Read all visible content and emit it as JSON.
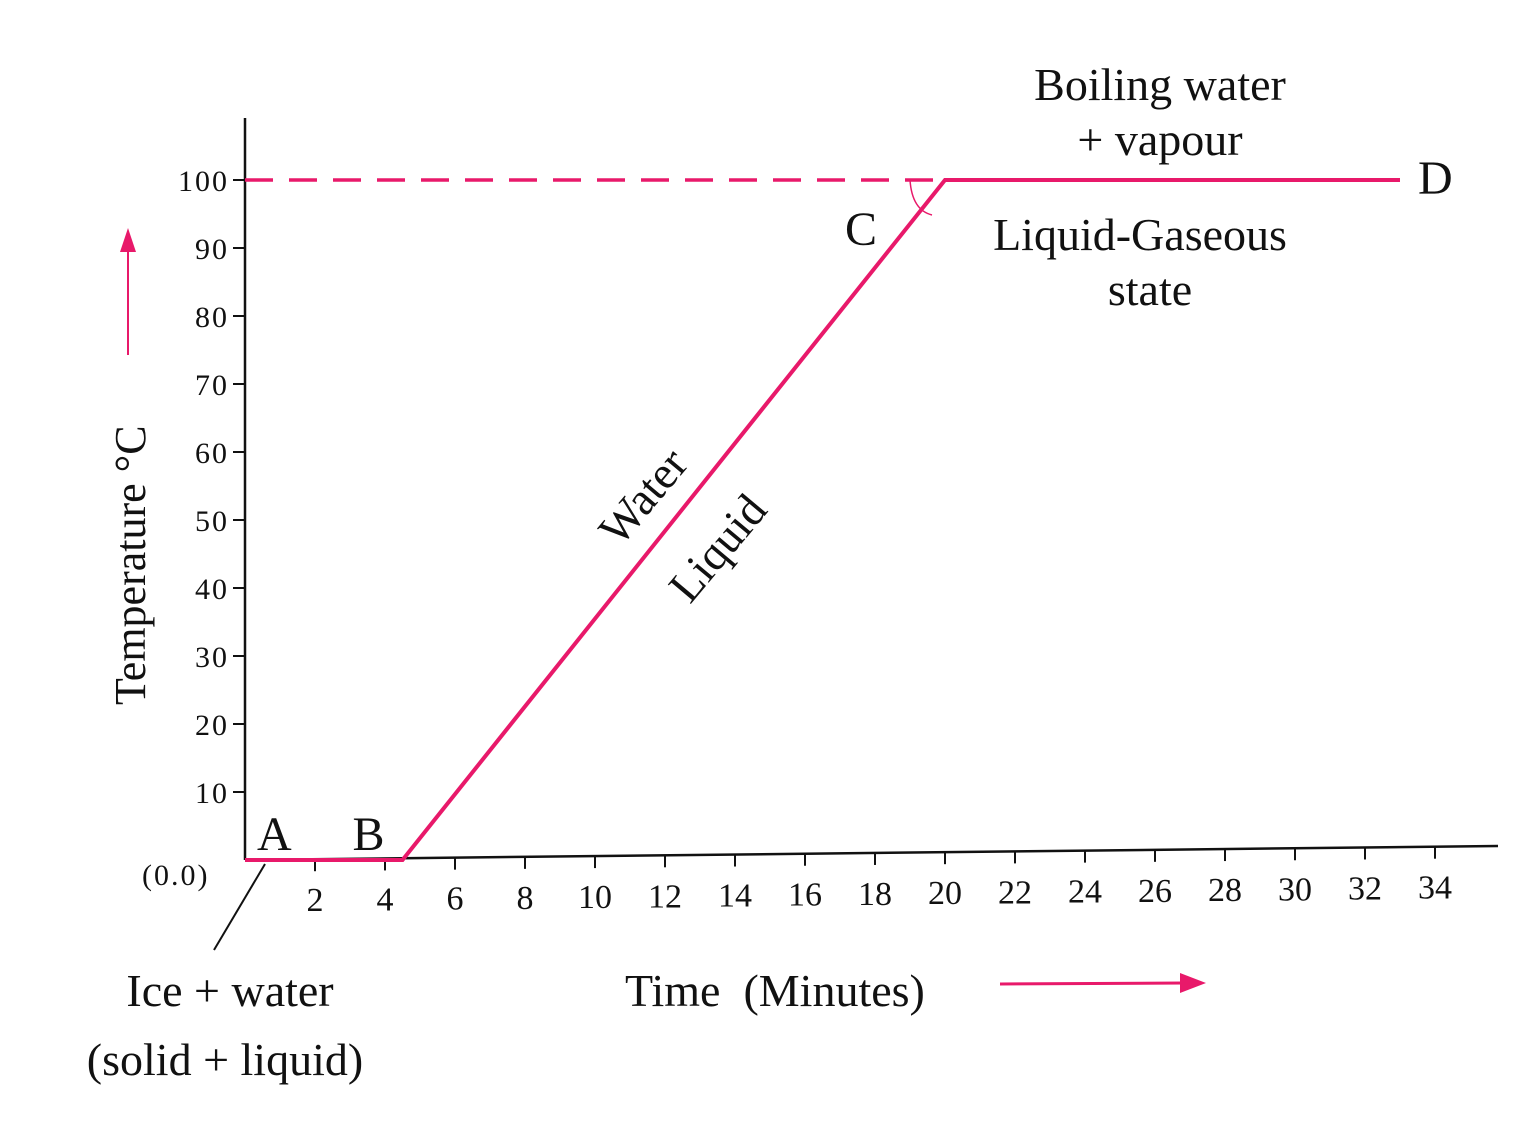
{
  "chart_data": {
    "type": "line",
    "title": "",
    "xlabel": "Time  (Minutes)",
    "ylabel": "Temperature °C",
    "origin_label": "(0.0)",
    "xlim": [
      0,
      36
    ],
    "ylim": [
      0,
      100
    ],
    "x_ticks": [
      2,
      4,
      6,
      8,
      10,
      12,
      14,
      16,
      18,
      20,
      22,
      24,
      26,
      28,
      30,
      32,
      34
    ],
    "y_ticks": [
      10,
      20,
      30,
      40,
      50,
      60,
      70,
      80,
      90,
      100
    ],
    "grid": false,
    "line_color": "#e8196a",
    "series": [
      {
        "points": [
          {
            "x": 0,
            "y": 0,
            "label": "A"
          },
          {
            "x": 4.5,
            "y": 0,
            "label": "B"
          },
          {
            "x": 20,
            "y": 100,
            "label": "C"
          },
          {
            "x": 33,
            "y": 100,
            "label": "D"
          }
        ]
      }
    ],
    "reference_line": {
      "y": 100,
      "from_x": 0,
      "to_x": 20,
      "style": "dashed"
    },
    "annotations": {
      "boiling": [
        "Boiling water",
        "+ vapour"
      ],
      "liquid_gaseous": [
        "Liquid-Gaseous",
        "state"
      ],
      "water": "Water",
      "liquid": "Liquid",
      "ice": [
        "Ice + water",
        "(solid + liquid)"
      ]
    }
  }
}
